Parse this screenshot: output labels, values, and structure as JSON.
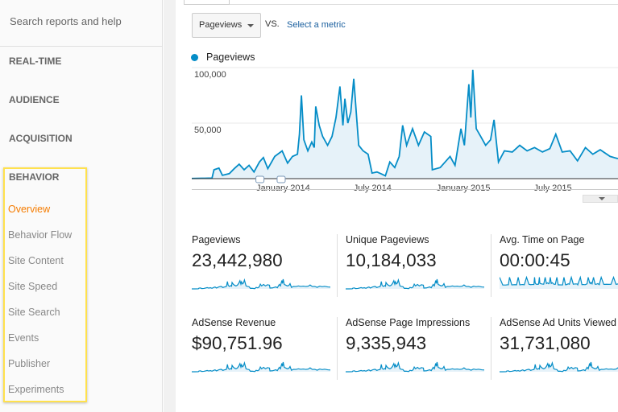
{
  "sidebar": {
    "search_placeholder": "Search reports and help",
    "sections": [
      "REAL-TIME",
      "AUDIENCE",
      "ACQUISITION",
      "BEHAVIOR"
    ],
    "behavior_items": [
      {
        "label": "Overview",
        "active": true
      },
      {
        "label": "Behavior Flow"
      },
      {
        "label": "Site Content"
      },
      {
        "label": "Site Speed"
      },
      {
        "label": "Site Search"
      },
      {
        "label": "Events"
      },
      {
        "label": "Publisher"
      },
      {
        "label": "Experiments"
      }
    ],
    "highlight_color": "#ffe14d",
    "active_color": "#f57c00"
  },
  "toolbar": {
    "metric": "Pageviews",
    "vs": "VS.",
    "select_metric": "Select a metric"
  },
  "chart_data": {
    "type": "area",
    "legend": "Pageviews",
    "color": "#058dc7",
    "ylim": [
      0,
      100000
    ],
    "yticks": [
      "100,000",
      "50,000"
    ],
    "xlim": [
      "2013-06-30",
      "2015-11-10"
    ],
    "xticks": [
      {
        "label": "January 2014",
        "date": "2014-01-01"
      },
      {
        "label": "July 2014",
        "date": "2014-07-01"
      },
      {
        "label": "January 2015",
        "date": "2015-01-01"
      },
      {
        "label": "July 2015",
        "date": "2015-07-01"
      }
    ],
    "annotations": [
      "2013-11-15",
      "2013-12-28"
    ],
    "series": [
      [
        "2013-06-30",
        200
      ],
      [
        "2013-07-20",
        300
      ],
      [
        "2013-08-10",
        500
      ],
      [
        "2013-08-14",
        8000
      ],
      [
        "2013-08-24",
        9500
      ],
      [
        "2013-08-31",
        3000
      ],
      [
        "2013-09-14",
        4500
      ],
      [
        "2013-09-24",
        9000
      ],
      [
        "2013-10-04",
        13000
      ],
      [
        "2013-10-14",
        8000
      ],
      [
        "2013-10-24",
        12000
      ],
      [
        "2013-11-03",
        6000
      ],
      [
        "2013-11-14",
        15000
      ],
      [
        "2013-11-22",
        19000
      ],
      [
        "2013-12-01",
        9000
      ],
      [
        "2013-12-15",
        20000
      ],
      [
        "2013-12-30",
        25000
      ],
      [
        "2014-01-10",
        14000
      ],
      [
        "2014-01-20",
        20000
      ],
      [
        "2014-01-30",
        22000
      ],
      [
        "2014-02-03",
        40000
      ],
      [
        "2014-02-07",
        75000
      ],
      [
        "2014-02-12",
        35000
      ],
      [
        "2014-02-20",
        25000
      ],
      [
        "2014-02-28",
        33000
      ],
      [
        "2014-03-05",
        28000
      ],
      [
        "2014-03-08",
        65000
      ],
      [
        "2014-03-15",
        48000
      ],
      [
        "2014-03-22",
        38000
      ],
      [
        "2014-04-01",
        30000
      ],
      [
        "2014-04-10",
        38000
      ],
      [
        "2014-04-18",
        55000
      ],
      [
        "2014-04-26",
        83000
      ],
      [
        "2014-05-02",
        48000
      ],
      [
        "2014-05-06",
        72000
      ],
      [
        "2014-05-12",
        50000
      ],
      [
        "2014-05-18",
        60000
      ],
      [
        "2014-05-24",
        90000
      ],
      [
        "2014-06-03",
        30000
      ],
      [
        "2014-06-12",
        25000
      ],
      [
        "2014-06-22",
        22000
      ],
      [
        "2014-06-30",
        5000
      ],
      [
        "2014-07-10",
        6000
      ],
      [
        "2014-07-20",
        4000
      ],
      [
        "2014-07-27",
        2500
      ],
      [
        "2014-08-05",
        15000
      ],
      [
        "2014-08-15",
        10000
      ],
      [
        "2014-08-24",
        20000
      ],
      [
        "2014-08-31",
        48000
      ],
      [
        "2014-09-08",
        30000
      ],
      [
        "2014-09-20",
        45000
      ],
      [
        "2014-10-02",
        30000
      ],
      [
        "2014-10-14",
        42000
      ],
      [
        "2014-10-27",
        38000
      ],
      [
        "2014-10-30",
        8000
      ],
      [
        "2014-11-15",
        10000
      ],
      [
        "2014-11-25",
        15000
      ],
      [
        "2014-12-05",
        20000
      ],
      [
        "2014-12-15",
        12000
      ],
      [
        "2014-12-27",
        45000
      ],
      [
        "2015-01-03",
        30000
      ],
      [
        "2015-01-12",
        85000
      ],
      [
        "2015-01-16",
        55000
      ],
      [
        "2015-01-20",
        98000
      ],
      [
        "2015-01-27",
        45000
      ],
      [
        "2015-02-05",
        38000
      ],
      [
        "2015-02-15",
        30000
      ],
      [
        "2015-02-25",
        35000
      ],
      [
        "2015-03-04",
        53000
      ],
      [
        "2015-03-13",
        15000
      ],
      [
        "2015-03-25",
        25000
      ],
      [
        "2015-04-10",
        24000
      ],
      [
        "2015-04-25",
        30000
      ],
      [
        "2015-05-10",
        25000
      ],
      [
        "2015-05-25",
        28000
      ],
      [
        "2015-06-10",
        24000
      ],
      [
        "2015-06-25",
        27000
      ],
      [
        "2015-07-07",
        40000
      ],
      [
        "2015-07-20",
        24000
      ],
      [
        "2015-08-05",
        25000
      ],
      [
        "2015-08-20",
        16000
      ],
      [
        "2015-09-05",
        28000
      ],
      [
        "2015-09-20",
        22000
      ],
      [
        "2015-10-05",
        26000
      ],
      [
        "2015-10-25",
        20000
      ],
      [
        "2015-11-10",
        18000
      ]
    ]
  },
  "metrics": [
    {
      "label": "Pageviews",
      "value": "23,442,980"
    },
    {
      "label": "Unique Pageviews",
      "value": "10,184,033"
    },
    {
      "label": "Avg. Time on Page",
      "value": "00:00:45"
    },
    {
      "label": "AdSense Revenue",
      "value": "$90,751.96"
    },
    {
      "label": "AdSense Page Impressions",
      "value": "9,335,943"
    },
    {
      "label": "AdSense Ad Units Viewed",
      "value": "31,731,080"
    }
  ]
}
